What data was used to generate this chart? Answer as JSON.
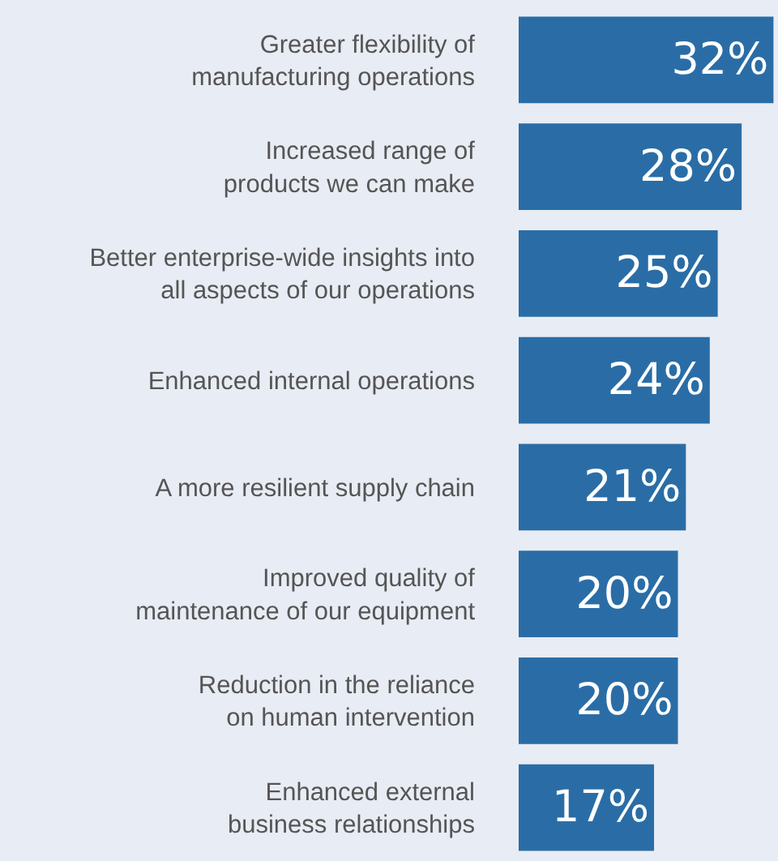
{
  "chart_data": {
    "type": "bar",
    "orientation": "horizontal",
    "categories": [
      "Greater flexibility of\nmanufacturing operations",
      "Increased range of\nproducts we can make",
      "Better enterprise-wide insights into\nall aspects of our operations",
      "Enhanced internal operations",
      "A more resilient supply chain",
      "Improved quality of\nmaintenance of our equipment",
      "Reduction in the reliance\non human intervention",
      "Enhanced external\nbusiness relationships"
    ],
    "values": [
      32,
      28,
      25,
      24,
      21,
      20,
      20,
      17
    ],
    "value_labels": [
      "32%",
      "28%",
      "25%",
      "24%",
      "21%",
      "20%",
      "20%",
      "17%"
    ],
    "color": "#2a6da6"
  }
}
